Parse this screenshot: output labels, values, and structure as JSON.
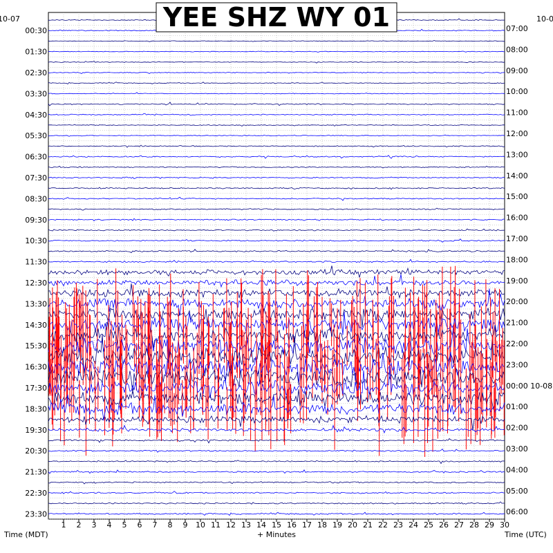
{
  "chart_data": {
    "type": "line",
    "title": "YEE SHZ WY 01",
    "xlabel": "+ Minutes",
    "ylabel_left": "Time (MDT)",
    "ylabel_right": "Time (UTC)",
    "date_left": "10-07",
    "date_right_top": "10-0",
    "xlim": [
      0,
      30
    ],
    "x_ticks": [
      "1",
      "2",
      "3",
      "4",
      "5",
      "6",
      "7",
      "8",
      "9",
      "10",
      "11",
      "12",
      "13",
      "14",
      "15",
      "16",
      "17",
      "18",
      "19",
      "20",
      "21",
      "22",
      "23",
      "24",
      "25",
      "26",
      "27",
      "28",
      "29",
      "30"
    ],
    "left_time_labels": [
      "00:30",
      "01:30",
      "02:30",
      "03:30",
      "04:30",
      "05:30",
      "06:30",
      "07:30",
      "08:30",
      "09:30",
      "10:30",
      "11:30",
      "12:30",
      "13:30",
      "14:30",
      "15:30",
      "16:30",
      "17:30",
      "18:30",
      "19:30",
      "20:30",
      "21:30",
      "22:30",
      "23:30"
    ],
    "right_time_labels": [
      "07:00",
      "08:00",
      "09:00",
      "10:00",
      "11:00",
      "12:00",
      "13:00",
      "14:00",
      "15:00",
      "16:00",
      "17:00",
      "18:00",
      "19:00",
      "20:00",
      "21:00",
      "22:00",
      "23:00",
      "00:00 10-08",
      "01:00",
      "02:00",
      "03:00",
      "04:00",
      "05:00",
      "06:00"
    ],
    "trace_count": 48,
    "trace_minutes": 30,
    "grid": true,
    "series_colors": [
      "#000080",
      "#0000ff",
      "#ff0000"
    ],
    "activity_levels": [
      0.6,
      0.6,
      0.4,
      0.4,
      0.5,
      0.5,
      0.5,
      0.5,
      0.7,
      0.6,
      0.5,
      0.5,
      0.6,
      0.7,
      0.7,
      0.7,
      0.7,
      0.7,
      0.7,
      0.7,
      0.8,
      0.8,
      0.9,
      0.9,
      3.0,
      3.5,
      5.0,
      6.0,
      7.0,
      8.0,
      8.0,
      9.0,
      10.0,
      10.0,
      10.0,
      9.0,
      8.0,
      7.0,
      4.0,
      2.0,
      1.0,
      0.8,
      0.8,
      0.8,
      0.8,
      0.8,
      0.8,
      0.8
    ]
  }
}
